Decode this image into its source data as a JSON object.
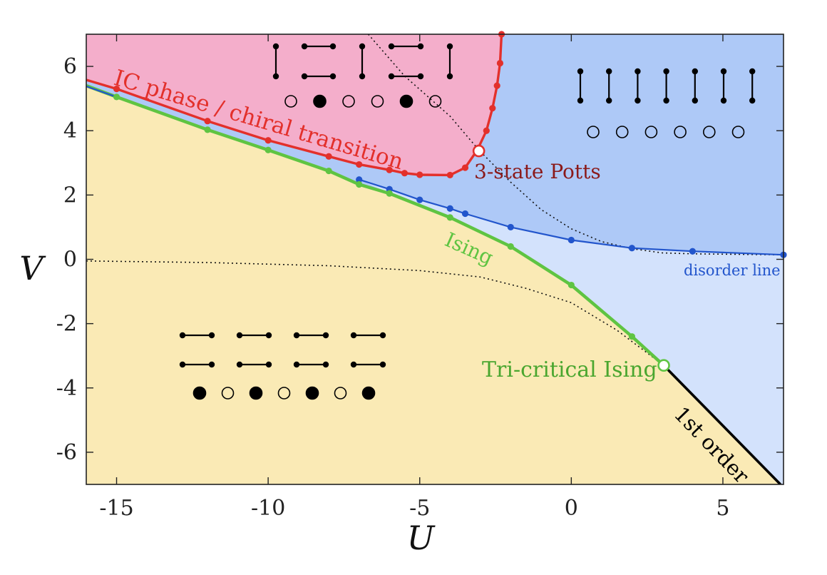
{
  "chart_data": {
    "type": "line",
    "title": "",
    "xlabel": "U",
    "ylabel": "V",
    "xlim": [
      -16,
      7
    ],
    "ylim": [
      -7,
      7
    ],
    "xticks": [
      -15,
      -10,
      -5,
      0,
      5
    ],
    "yticks": [
      -6,
      -4,
      -2,
      0,
      2,
      4,
      6
    ],
    "grid": false,
    "colors": {
      "ic_region": "#f4aecb",
      "disordered_region": "#aec9f7",
      "disordered_light": "#d3e2fc",
      "dimerized_region": "#faeab5",
      "ic_line": "#e3302b",
      "ising_line": "#5fc442",
      "disorder_line": "#2255cc",
      "first_order": "#000000"
    },
    "series": [
      {
        "key": "ic",
        "name": "IC phase / chiral transition",
        "points": [
          [
            -15,
            5.3
          ],
          [
            -12,
            4.3
          ],
          [
            -10,
            3.7
          ],
          [
            -8,
            3.2
          ],
          [
            -7,
            2.95
          ],
          [
            -6,
            2.78
          ],
          [
            -5.5,
            2.68
          ],
          [
            -5,
            2.63
          ],
          [
            -4,
            2.62
          ],
          [
            -3.5,
            2.85
          ],
          [
            -3.1,
            3.4
          ],
          [
            -2.8,
            4.0
          ],
          [
            -2.6,
            4.7
          ],
          [
            -2.45,
            5.4
          ],
          [
            -2.35,
            6.1
          ],
          [
            -2.3,
            7.0
          ]
        ]
      },
      {
        "key": "ising",
        "name": "Ising",
        "points": [
          [
            -15,
            5.05
          ],
          [
            -12,
            4.03
          ],
          [
            -10,
            3.4
          ],
          [
            -8,
            2.75
          ],
          [
            -7,
            2.33
          ],
          [
            -6,
            2.05
          ],
          [
            -4,
            1.3
          ],
          [
            -2,
            0.4
          ],
          [
            0,
            -0.8
          ],
          [
            2,
            -2.4
          ],
          [
            3.05,
            -3.3
          ]
        ]
      },
      {
        "key": "disorder",
        "name": "disorder line",
        "points": [
          [
            -7,
            2.48
          ],
          [
            -6,
            2.18
          ],
          [
            -5,
            1.85
          ],
          [
            -4,
            1.58
          ],
          [
            -3.5,
            1.42
          ],
          [
            -2,
            1.0
          ],
          [
            0,
            0.6
          ],
          [
            2,
            0.35
          ],
          [
            4,
            0.25
          ],
          [
            7,
            0.14
          ]
        ]
      },
      {
        "key": "first",
        "name": "1st order",
        "points": [
          [
            3.05,
            -3.3
          ],
          [
            6.9,
            -7.0
          ]
        ]
      }
    ],
    "guides": [
      {
        "points": [
          [
            -16,
            -0.05
          ],
          [
            -12,
            -0.1
          ],
          [
            -8,
            -0.2
          ],
          [
            -5,
            -0.35
          ],
          [
            -3,
            -0.55
          ],
          [
            -1.5,
            -0.9
          ],
          [
            0,
            -1.35
          ],
          [
            1.5,
            -2.2
          ],
          [
            3.05,
            -3.3
          ]
        ]
      },
      {
        "points": [
          [
            -6.7,
            7.0
          ],
          [
            -5.5,
            5.7
          ],
          [
            -4,
            4.45
          ],
          [
            -3.05,
            3.4
          ],
          [
            -2,
            2.4
          ],
          [
            -1,
            1.55
          ],
          [
            0,
            0.95
          ],
          [
            1,
            0.55
          ],
          [
            2,
            0.33
          ],
          [
            3,
            0.2
          ],
          [
            4,
            0.17
          ],
          [
            7,
            0.14
          ]
        ]
      }
    ],
    "special_points": [
      {
        "key": "potts",
        "name": "3-state Potts",
        "x": -3.05,
        "y": 3.37,
        "color": "#e3302b"
      },
      {
        "key": "tci",
        "name": "Tri-critical Ising",
        "x": 3.05,
        "y": -3.3,
        "color": "#5fc442"
      }
    ],
    "annotations": {
      "ic_label": "IC phase / chiral transition",
      "potts_label": "3-state Potts",
      "ising_label": "Ising",
      "disorder_label": "disorder line",
      "tci_label": "Tri-critical Ising",
      "first_order_label": "1st order"
    },
    "insets": [
      {
        "region": "incommensurate",
        "circles": [
          "empty",
          "filled",
          "empty",
          "empty",
          "filled",
          "empty"
        ]
      },
      {
        "region": "disordered",
        "circles": [
          "empty",
          "empty",
          "empty",
          "empty",
          "empty",
          "empty"
        ]
      },
      {
        "region": "dimerized",
        "circles": [
          "filled",
          "empty",
          "filled",
          "empty",
          "filled",
          "empty",
          "filled"
        ]
      }
    ]
  }
}
